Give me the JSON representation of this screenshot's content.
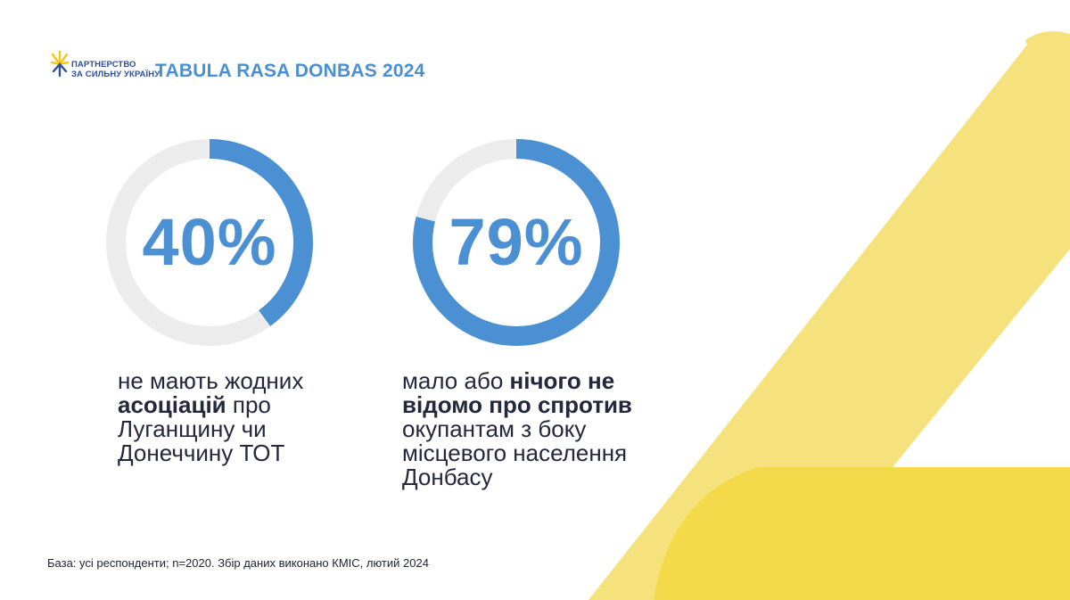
{
  "header": {
    "logo_line1": "ПАРТНЕРСТВО",
    "logo_line2": "ЗА СИЛЬНУ УКРАЇНУ",
    "title": "TABULA RASA DONBAS 2024"
  },
  "colors": {
    "accent_blue": "#4a90d2",
    "ring_track": "#ececec",
    "text_dark": "#23283d",
    "yellow_light": "#f5e27c",
    "yellow_deep": "#f4d94a",
    "logo_yellow": "#f5c518",
    "logo_blue": "#2d4f9a"
  },
  "chart_data": [
    {
      "type": "pie",
      "style": "donut",
      "values": [
        40,
        60
      ],
      "label": "40%",
      "caption": {
        "line1": "не мають жодних",
        "line2_bold": "асоціацій",
        "line2_rest": " про",
        "line3": "Луганщину чи",
        "line4": "Донеччину ТОТ"
      }
    },
    {
      "type": "pie",
      "style": "donut",
      "values": [
        79,
        21
      ],
      "label": "79%",
      "caption": {
        "line1_plain": "мало або ",
        "line1_bold": "нічого не",
        "line2_bold": "відомо про спротив",
        "line3": "окупантам з боку",
        "line4": "місцевого населення",
        "line5": "Донбасу"
      }
    }
  ],
  "footer": {
    "note": "База: усі респонденти; n=2020. Збір даних виконано КМІС, лютий 2024"
  }
}
